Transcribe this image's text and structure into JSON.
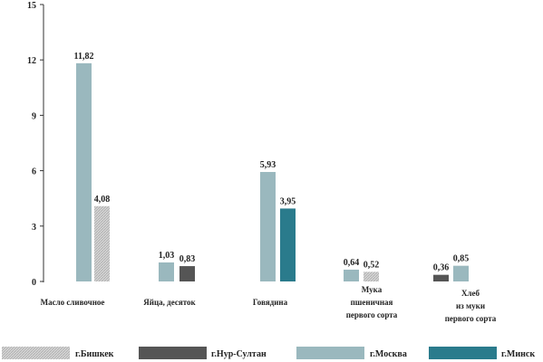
{
  "chart_data": {
    "type": "bar",
    "ylim": [
      0,
      15
    ],
    "yticks": [
      "0",
      "3",
      "6",
      "9",
      "12",
      "15"
    ],
    "categories": [
      [
        "Масло сливочное"
      ],
      [
        "Яйца,  десяток"
      ],
      [
        "Говядина"
      ],
      [
        "Мука",
        "пшеничная",
        "первого сорта"
      ],
      [
        "Хлеб",
        "из муки",
        "первого сорта"
      ]
    ],
    "series": [
      {
        "name": "г.Бишкек",
        "color": "#c8c8c8",
        "hatched": true
      },
      {
        "name": "г.Нур-Султан",
        "color": "#555555"
      },
      {
        "name": "г.Москва",
        "color": "#9ab8be"
      },
      {
        "name": "г.Минск",
        "color": "#2a7b8c"
      }
    ],
    "bars": [
      {
        "category": 0,
        "series": 2,
        "value": 11.82,
        "label": "11,82"
      },
      {
        "category": 0,
        "series": 0,
        "value": 4.08,
        "label": "4,08"
      },
      {
        "category": 1,
        "series": 2,
        "value": 1.03,
        "label": "1,03"
      },
      {
        "category": 1,
        "series": 1,
        "value": 0.83,
        "label": "0,83"
      },
      {
        "category": 2,
        "series": 2,
        "value": 5.93,
        "label": "5,93"
      },
      {
        "category": 2,
        "series": 3,
        "value": 3.95,
        "label": "3,95"
      },
      {
        "category": 3,
        "series": 2,
        "value": 0.64,
        "label": "0,64"
      },
      {
        "category": 3,
        "series": 0,
        "value": 0.52,
        "label": "0,52"
      },
      {
        "category": 4,
        "series": 1,
        "value": 0.36,
        "label": "0,36"
      },
      {
        "category": 4,
        "series": 2,
        "value": 0.85,
        "label": "0,85"
      }
    ],
    "legend": "bottom"
  }
}
